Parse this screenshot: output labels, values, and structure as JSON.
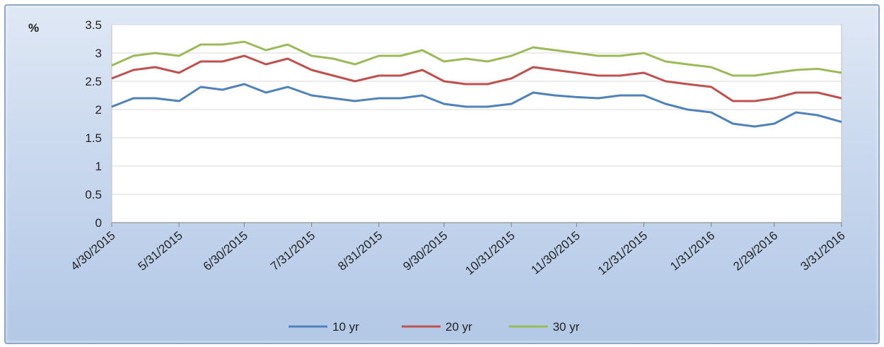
{
  "chart_data": {
    "type": "line",
    "ylabel": "%",
    "ylim": [
      0,
      3.5
    ],
    "y_ticks": [
      "0",
      "0.5",
      "1",
      "1.5",
      "2",
      "2.5",
      "3",
      "3.5"
    ],
    "x_ticks": [
      "4/30/2015",
      "5/31/2015",
      "6/30/2015",
      "7/31/2015",
      "8/31/2015",
      "9/30/2015",
      "10/31/2015",
      "11/30/2015",
      "12/31/2015",
      "1/31/2016",
      "2/29/2016",
      "3/31/2016"
    ],
    "x_range": [
      "4/30/2015",
      "3/31/2016"
    ],
    "grid": "horizontal",
    "legend_position": "bottom",
    "series": [
      {
        "name": "10 yr",
        "color": "#4f81bd",
        "x": [
          "4/30/2015",
          "5/10/2015",
          "5/20/2015",
          "5/31/2015",
          "6/10/2015",
          "6/20/2015",
          "6/30/2015",
          "7/10/2015",
          "7/20/2015",
          "7/31/2015",
          "8/10/2015",
          "8/20/2015",
          "8/31/2015",
          "9/10/2015",
          "9/20/2015",
          "9/30/2015",
          "10/10/2015",
          "10/20/2015",
          "10/31/2015",
          "11/10/2015",
          "11/20/2015",
          "11/30/2015",
          "12/10/2015",
          "12/20/2015",
          "12/31/2015",
          "1/10/2016",
          "1/20/2016",
          "1/31/2016",
          "2/10/2016",
          "2/20/2016",
          "2/29/2016",
          "3/10/2016",
          "3/20/2016",
          "3/31/2016"
        ],
        "values": [
          2.05,
          2.2,
          2.2,
          2.15,
          2.4,
          2.35,
          2.45,
          2.3,
          2.4,
          2.25,
          2.2,
          2.15,
          2.2,
          2.2,
          2.25,
          2.1,
          2.05,
          2.05,
          2.1,
          2.3,
          2.25,
          2.22,
          2.2,
          2.25,
          2.25,
          2.1,
          2.0,
          1.95,
          1.75,
          1.7,
          1.75,
          1.95,
          1.9,
          1.78
        ]
      },
      {
        "name": "20 yr",
        "color": "#c0504d",
        "x": [
          "4/30/2015",
          "5/10/2015",
          "5/20/2015",
          "5/31/2015",
          "6/10/2015",
          "6/20/2015",
          "6/30/2015",
          "7/10/2015",
          "7/20/2015",
          "7/31/2015",
          "8/10/2015",
          "8/20/2015",
          "8/31/2015",
          "9/10/2015",
          "9/20/2015",
          "9/30/2015",
          "10/10/2015",
          "10/20/2015",
          "10/31/2015",
          "11/10/2015",
          "11/20/2015",
          "11/30/2015",
          "12/10/2015",
          "12/20/2015",
          "12/31/2015",
          "1/10/2016",
          "1/20/2016",
          "1/31/2016",
          "2/10/2016",
          "2/20/2016",
          "2/29/2016",
          "3/10/2016",
          "3/20/2016",
          "3/31/2016"
        ],
        "values": [
          2.55,
          2.7,
          2.75,
          2.65,
          2.85,
          2.85,
          2.95,
          2.8,
          2.9,
          2.7,
          2.6,
          2.5,
          2.6,
          2.6,
          2.7,
          2.5,
          2.45,
          2.45,
          2.55,
          2.75,
          2.7,
          2.65,
          2.6,
          2.6,
          2.65,
          2.5,
          2.45,
          2.4,
          2.15,
          2.15,
          2.2,
          2.3,
          2.3,
          2.2
        ]
      },
      {
        "name": "30 yr",
        "color": "#9bbb59",
        "x": [
          "4/30/2015",
          "5/10/2015",
          "5/20/2015",
          "5/31/2015",
          "6/10/2015",
          "6/20/2015",
          "6/30/2015",
          "7/10/2015",
          "7/20/2015",
          "7/31/2015",
          "8/10/2015",
          "8/20/2015",
          "8/31/2015",
          "9/10/2015",
          "9/20/2015",
          "9/30/2015",
          "10/10/2015",
          "10/20/2015",
          "10/31/2015",
          "11/10/2015",
          "11/20/2015",
          "11/30/2015",
          "12/10/2015",
          "12/20/2015",
          "12/31/2015",
          "1/10/2016",
          "1/20/2016",
          "1/31/2016",
          "2/10/2016",
          "2/20/2016",
          "2/29/2016",
          "3/10/2016",
          "3/20/2016",
          "3/31/2016"
        ],
        "values": [
          2.78,
          2.95,
          3.0,
          2.95,
          3.15,
          3.15,
          3.2,
          3.05,
          3.15,
          2.95,
          2.9,
          2.8,
          2.95,
          2.95,
          3.05,
          2.85,
          2.9,
          2.85,
          2.95,
          3.1,
          3.05,
          3.0,
          2.95,
          2.95,
          3.0,
          2.85,
          2.8,
          2.75,
          2.6,
          2.6,
          2.65,
          2.7,
          2.72,
          2.65
        ]
      }
    ]
  }
}
